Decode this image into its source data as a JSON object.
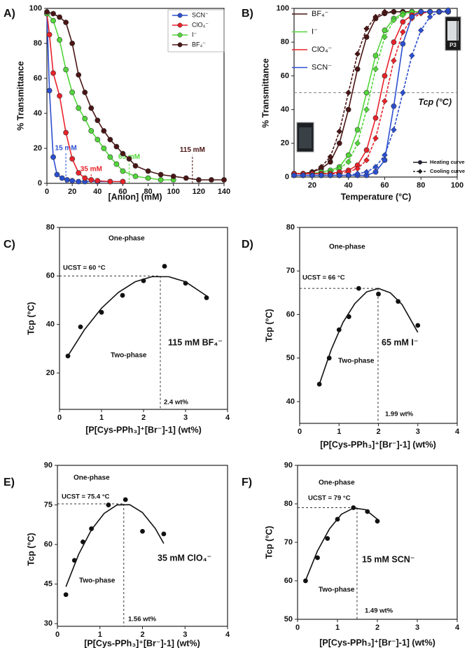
{
  "chart_data": [
    {
      "type": "line",
      "panel_label": "A)",
      "xlabel": "[Anion] (mM)",
      "ylabel": "% Transmittance",
      "xlim": [
        0,
        140
      ],
      "ylim": [
        0,
        100
      ],
      "xticks": [
        0,
        20,
        40,
        60,
        80,
        100,
        120,
        140
      ],
      "yticks": [
        0,
        20,
        40,
        60,
        80,
        100
      ],
      "legend": "upper right",
      "series": [
        {
          "name": "SCN⁻",
          "color": "#2c4fd0",
          "x": [
            0,
            2,
            5,
            8,
            12,
            16,
            20,
            25,
            30,
            40,
            50,
            60
          ],
          "values": [
            97,
            53,
            15,
            5,
            3,
            2,
            1.5,
            1,
            1,
            1,
            1,
            1
          ]
        },
        {
          "name": "ClO₄⁻",
          "color": "#e8222a",
          "x": [
            0,
            2,
            5,
            10,
            15,
            20,
            25,
            30,
            35,
            40,
            50,
            60
          ],
          "values": [
            97,
            85,
            63,
            50,
            29,
            14,
            6,
            3,
            2,
            1.5,
            1,
            1
          ]
        },
        {
          "name": "I⁻",
          "color": "#52d63a",
          "x": [
            0,
            5,
            10,
            15,
            20,
            25,
            30,
            35,
            40,
            45,
            50,
            55,
            60,
            70,
            80,
            90,
            100
          ],
          "values": [
            97,
            93,
            82,
            65,
            52,
            43,
            37,
            30,
            25,
            20,
            15,
            11,
            7,
            4,
            3,
            2,
            2
          ]
        },
        {
          "name": "BF₄⁻",
          "color": "#4a1515",
          "x": [
            0,
            5,
            10,
            15,
            20,
            25,
            30,
            35,
            40,
            45,
            50,
            55,
            60,
            65,
            70,
            80,
            90,
            100,
            110,
            120,
            130,
            140
          ],
          "values": [
            98,
            97,
            95,
            92,
            80,
            62,
            52,
            43,
            36,
            30,
            25,
            21,
            17,
            14,
            10,
            7,
            5,
            4,
            3,
            2,
            2,
            2
          ]
        }
      ],
      "annotations": [
        {
          "text": "15 mM",
          "x": 15,
          "color": "#2c4fd0"
        },
        {
          "text": "35 mM",
          "x": 35,
          "color": "#e8222a"
        },
        {
          "text": "65 mM",
          "x": 65,
          "color": "#52d63a"
        },
        {
          "text": "115 mM",
          "x": 115,
          "color": "#4a1515"
        }
      ]
    },
    {
      "type": "line",
      "panel_label": "B)",
      "xlabel": "Temperature (°C)",
      "ylabel": "% Transmittance",
      "xlim": [
        10,
        100
      ],
      "ylim": [
        0,
        100
      ],
      "xticks": [
        20,
        40,
        60,
        80,
        100
      ],
      "yticks": [
        0,
        20,
        40,
        60,
        80,
        100
      ],
      "legend": "upper left",
      "hline": 50,
      "hline_label": "Tcp (°C)",
      "vial_label": "P3",
      "curve_legend": [
        "Heating curve",
        "Cooling curve"
      ],
      "x": [
        10,
        15,
        20,
        25,
        30,
        35,
        40,
        45,
        50,
        55,
        60,
        65,
        70,
        75,
        80,
        85,
        90,
        95
      ],
      "series": [
        {
          "name": "BF₄⁻",
          "color": "#4a1515",
          "heating": [
            2,
            2,
            3,
            5,
            9,
            20,
            40,
            64,
            83,
            94,
            97,
            98,
            98,
            98,
            98,
            98,
            98,
            98
          ],
          "cooling": [
            2,
            2,
            3,
            6,
            12,
            27,
            50,
            73,
            88,
            95,
            98,
            98,
            98,
            98,
            98,
            98,
            98,
            98
          ]
        },
        {
          "name": "I⁻",
          "color": "#52d63a",
          "heating": [
            2,
            2,
            2,
            3,
            4,
            6,
            13,
            28,
            50,
            72,
            87,
            94,
            97,
            98,
            98,
            98,
            98,
            98
          ],
          "cooling": [
            2,
            2,
            2,
            2,
            3,
            5,
            9,
            20,
            40,
            64,
            83,
            93,
            96,
            98,
            98,
            98,
            98,
            98
          ]
        },
        {
          "name": "ClO₄⁻",
          "color": "#e8222a",
          "heating": [
            2,
            2,
            2,
            2,
            2,
            3,
            4,
            7,
            16,
            35,
            60,
            80,
            92,
            96,
            98,
            98,
            98,
            98
          ],
          "cooling": [
            2,
            2,
            2,
            2,
            2,
            2,
            3,
            5,
            10,
            23,
            45,
            69,
            86,
            94,
            97,
            98,
            98,
            98
          ]
        },
        {
          "name": "SCN⁻",
          "color": "#2c4fd0",
          "heating": [
            1,
            1,
            1,
            1,
            1,
            1,
            1,
            1,
            1,
            3,
            10,
            42,
            79,
            95,
            98,
            98,
            98,
            98
          ],
          "cooling": [
            1,
            1,
            1,
            1,
            1,
            1,
            1,
            2,
            3,
            6,
            13,
            28,
            50,
            72,
            87,
            95,
            98,
            99
          ]
        }
      ]
    },
    {
      "type": "scatter",
      "panel_label": "C)",
      "xlabel": "[P[Cys-PPh₃]⁺[Br⁻]-1] (wt%)",
      "ylabel": "Tcp (°C)",
      "xlim": [
        0,
        4
      ],
      "ylim": [
        5,
        80
      ],
      "xticks": [
        0,
        1,
        2,
        3,
        4
      ],
      "yticks": [
        20,
        40,
        60,
        80
      ],
      "color": "#111",
      "x": [
        0.2,
        0.5,
        1,
        1.5,
        2,
        2.5,
        3,
        3.5
      ],
      "values": [
        27,
        39,
        45,
        52,
        58,
        64,
        57,
        51
      ],
      "fit": {
        "x": [
          0.2,
          0.6,
          1.0,
          1.4,
          1.8,
          2.2,
          2.6,
          3.0,
          3.5
        ],
        "values": [
          27.1,
          38,
          46.7,
          53.2,
          57.6,
          59.7,
          59.7,
          57.6,
          51.8
        ]
      },
      "ucst": {
        "x": 2.4,
        "y": 60,
        "label": "UCST = 60 °C",
        "x_label": "2.4 wt%"
      },
      "region_labels": [
        "One-phase",
        "Two-phase"
      ],
      "anion_label": "115 mM BF₄⁻"
    },
    {
      "type": "scatter",
      "panel_label": "D)",
      "xlabel": "[P[Cys-PPh₃]⁺[Br⁻]-1] (wt%)",
      "ylabel": "Tcp (°C)",
      "xlim": [
        0,
        4
      ],
      "ylim": [
        35,
        80
      ],
      "xticks": [
        0,
        1,
        2,
        3,
        4
      ],
      "yticks": [
        40,
        50,
        60,
        70,
        80
      ],
      "color": "#111",
      "x": [
        0.5,
        0.75,
        1,
        1.25,
        1.5,
        2,
        2.5,
        3
      ],
      "values": [
        44,
        50,
        56.5,
        59.5,
        66,
        64.7,
        63,
        57.5
      ],
      "fit": {
        "x": [
          0.5,
          0.8,
          1.1,
          1.4,
          1.7,
          2.0,
          2.3,
          2.6,
          3.0
        ],
        "values": [
          44,
          51.9,
          58.2,
          62.5,
          65.2,
          66,
          65,
          62.3,
          55.9
        ]
      },
      "ucst": {
        "x": 1.99,
        "y": 66,
        "label": "UCST = 66 °C",
        "x_label": "1.99 wt%"
      },
      "region_labels": [
        "One-phase",
        "Two-phase"
      ],
      "anion_label": "65 mM I⁻"
    },
    {
      "type": "scatter",
      "panel_label": "E)",
      "xlabel": "[P[Cys-PPh₃]⁺[Br⁻]-1] (wt%)",
      "ylabel": "Tcp (°C)",
      "xlim": [
        0,
        4
      ],
      "ylim": [
        29,
        90
      ],
      "xticks": [
        0,
        1,
        2,
        3,
        4
      ],
      "yticks": [
        30,
        45,
        60,
        75,
        90
      ],
      "color": "#111",
      "x": [
        0.2,
        0.4,
        0.6,
        0.8,
        1.2,
        1.6,
        2,
        2.5
      ],
      "values": [
        41,
        54,
        61,
        66,
        75,
        77,
        65,
        64
      ],
      "fit": {
        "x": [
          0.2,
          0.5,
          0.8,
          1.1,
          1.4,
          1.7,
          2.0,
          2.3,
          2.5
        ],
        "values": [
          44,
          56.3,
          65.6,
          71.8,
          75,
          75.1,
          72.1,
          66.1,
          60.4
        ]
      },
      "ucst": {
        "x": 1.56,
        "y": 75.4,
        "label": "UCST = 75.4 °C",
        "x_label": "1.56 wt%"
      },
      "region_labels": [
        "One-phase",
        "Two-phase"
      ],
      "anion_label": "35 mM ClO₄⁻"
    },
    {
      "type": "scatter",
      "panel_label": "F)",
      "xlabel": "[P[Cys-PPh₃]⁺[Br⁻]-1] (wt%)",
      "ylabel": "Tcp (°C)",
      "xlim": [
        0,
        4
      ],
      "ylim": [
        50,
        90
      ],
      "xticks": [
        0,
        1,
        2,
        3,
        4
      ],
      "yticks": [
        50,
        60,
        70,
        80,
        90
      ],
      "color": "#111",
      "x": [
        0.2,
        0.5,
        0.75,
        1,
        1.4,
        1.75,
        2
      ],
      "values": [
        60,
        66,
        71,
        76,
        79,
        78,
        75.5
      ],
      "fit": {
        "x": [
          0.2,
          0.5,
          0.8,
          1.1,
          1.4,
          1.7,
          2.0
        ],
        "values": [
          60.1,
          67.8,
          73.5,
          77.3,
          78.9,
          78.5,
          76
        ]
      },
      "ucst": {
        "x": 1.49,
        "y": 79,
        "label": "UCST = 79 °C",
        "x_label": "1.49 wt%"
      },
      "region_labels": [
        "One-phase",
        "Two-phase"
      ],
      "anion_label": "15 mM SCN⁻"
    }
  ]
}
